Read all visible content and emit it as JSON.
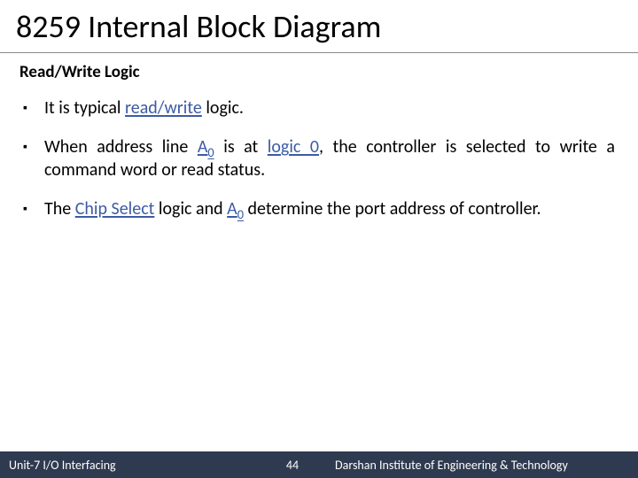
{
  "title": "8259 Internal Block Diagram",
  "subtitle": "Read/Write Logic",
  "colors": {
    "background": "#ffffff",
    "text": "#000000",
    "keyword": "#3b5ba5",
    "footer_bg": "#2e3a4f",
    "footer_text": "#ffffff",
    "rule": "#888888"
  },
  "typography": {
    "title_fontsize": 36,
    "subtitle_fontsize": 19,
    "body_fontsize": 20,
    "footer_fontsize": 14,
    "font_family": "Calibri"
  },
  "bullets": [
    {
      "segments": [
        {
          "t": "It is typical "
        },
        {
          "t": "read/write",
          "kw": true
        },
        {
          "t": " logic."
        }
      ]
    },
    {
      "segments": [
        {
          "t": "When address line "
        },
        {
          "t": "A",
          "kw": true
        },
        {
          "t": "0",
          "kw": true,
          "sub": true
        },
        {
          "t": " is at "
        },
        {
          "t": "logic 0",
          "kw": true
        },
        {
          "t": ", the controller is selected to write a command word or read status."
        }
      ]
    },
    {
      "segments": [
        {
          "t": "The "
        },
        {
          "t": "Chip Select",
          "kw": true
        },
        {
          "t": " logic and "
        },
        {
          "t": "A",
          "kw": true
        },
        {
          "t": "0",
          "kw": true,
          "sub": true
        },
        {
          "t": " determine the port address of controller."
        }
      ]
    }
  ],
  "footer": {
    "left": "Unit-7 I/O Interfacing",
    "page": "44",
    "right": "Darshan Institute of Engineering & Technology"
  }
}
